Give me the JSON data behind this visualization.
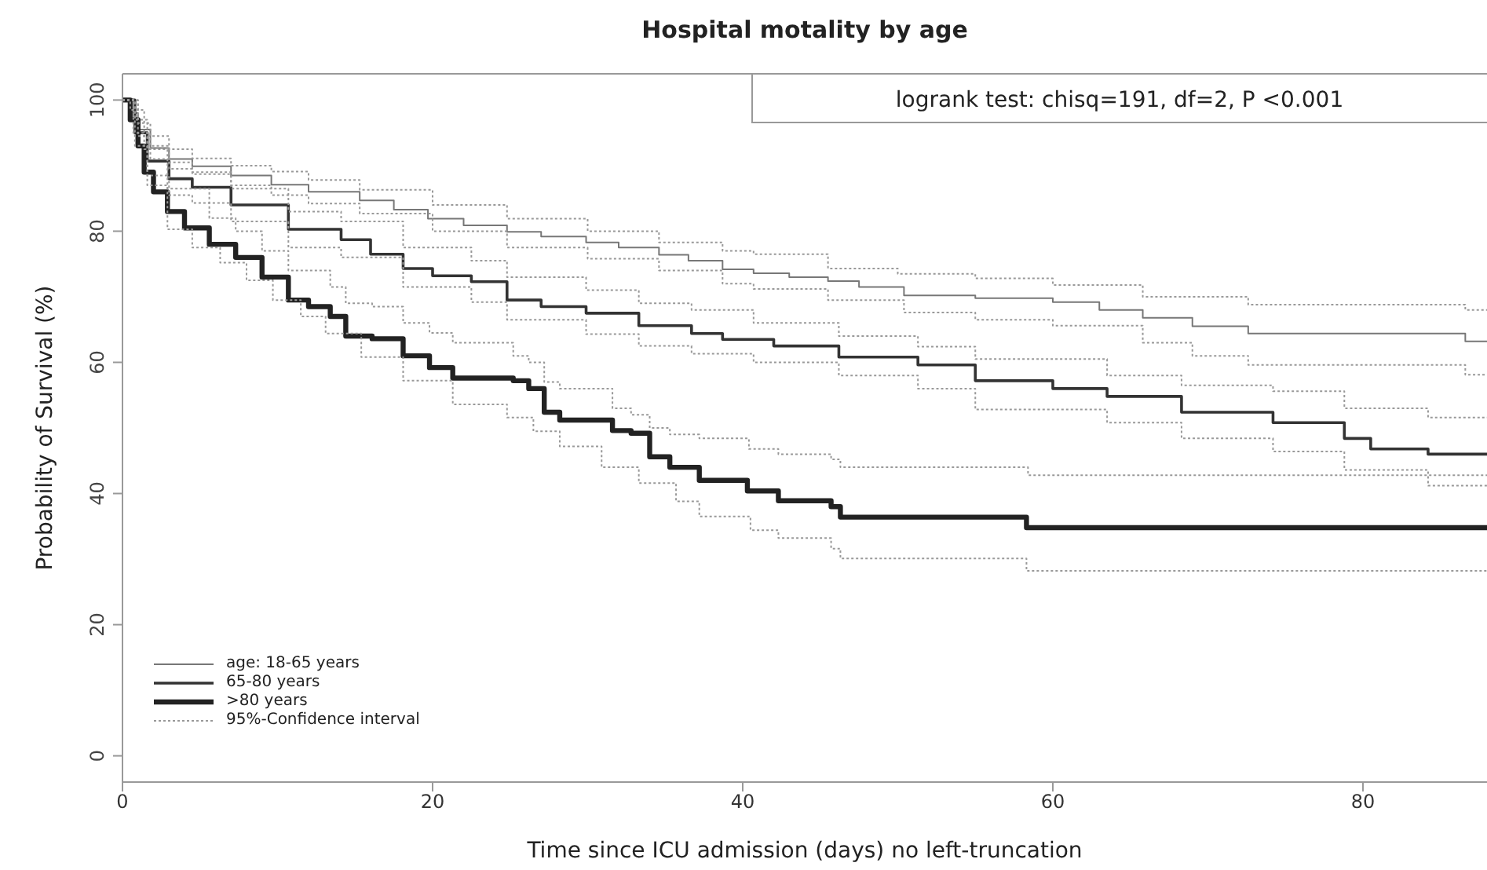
{
  "chart_data": {
    "type": "step",
    "title": "Hospital motality by age",
    "xlabel": "Time since ICU admission (days) no left-truncation",
    "ylabel": "Probability of Survival (%)",
    "annotations": [
      "logrank test: chisq=191, df=2, P <0.001"
    ],
    "xlim": [
      0,
      88
    ],
    "xticks": [
      0,
      20,
      40,
      60,
      80
    ],
    "ylim": [
      -4,
      104
    ],
    "yticks": [
      0,
      20,
      40,
      60,
      80,
      100
    ],
    "legend": "bottom left",
    "marker": "none",
    "series": [
      {
        "name": "age: 18-65 years",
        "color": "#777777",
        "line_style": "solid",
        "x": [
          0,
          0.5,
          1,
          1.8,
          3,
          4.5,
          7,
          9.6,
          12,
          15.3,
          17.5,
          19.7,
          22,
          24.8,
          27,
          29.9,
          32,
          34.6,
          36.5,
          38.7,
          40.7,
          43,
          45.5,
          47.5,
          50.4,
          55,
          60,
          63,
          65.8,
          69,
          72.6,
          86.6,
          88
        ],
        "values": [
          100,
          98,
          95.5,
          92.7,
          91,
          89.9,
          88.5,
          87.1,
          86,
          84.7,
          83.3,
          81.9,
          80.9,
          79.9,
          79.2,
          78.3,
          77.5,
          76.4,
          75.5,
          74.2,
          73.6,
          73,
          72.4,
          71.5,
          70.2,
          69.8,
          69.2,
          68,
          66.8,
          65.5,
          64.4,
          63.2,
          63.2
        ]
      },
      {
        "name": "65-80 years",
        "color": "#333333",
        "line_style": "solid",
        "x": [
          0,
          0.8,
          1.6,
          3,
          4.5,
          7,
          10.7,
          14.1,
          16,
          18.1,
          20,
          22.5,
          24.8,
          27,
          29.9,
          33.3,
          36.7,
          38.7,
          42,
          46.2,
          51.3,
          55,
          60,
          63.5,
          68.3,
          74.2,
          78.8,
          80.5,
          84.2,
          88
        ],
        "values": [
          100,
          95,
          90.7,
          88,
          86.7,
          84,
          80.3,
          78.7,
          76.5,
          74.3,
          73.2,
          72.3,
          69.5,
          68.5,
          67.5,
          65.6,
          64.4,
          63.5,
          62.5,
          60.8,
          59.6,
          57.2,
          56,
          54.8,
          52.4,
          50.8,
          48.4,
          46.8,
          46,
          46
        ]
      },
      {
        "name": ">80 years",
        "color": "#222222",
        "line_style": "solid",
        "x": [
          0,
          0.5,
          1,
          1.4,
          2,
          2.9,
          4,
          5.6,
          7.3,
          9,
          10.7,
          12,
          13.4,
          14.4,
          16.1,
          18.1,
          19.8,
          21.3,
          25.2,
          26.2,
          27.2,
          28.2,
          31.6,
          32.8,
          34,
          35.3,
          37.2,
          40.3,
          42.3,
          45.7,
          46.3,
          58.3,
          88
        ],
        "values": [
          100,
          97,
          93,
          89,
          86,
          83,
          80.5,
          78,
          76,
          73,
          69.5,
          68.5,
          67,
          64,
          63.6,
          61,
          59.2,
          57.6,
          57.2,
          56,
          52.4,
          51.2,
          49.6,
          49.2,
          45.6,
          44,
          42,
          40.4,
          38.9,
          38,
          36.4,
          34.8,
          34.8
        ]
      },
      {
        "name": "95%-Confidence interval",
        "color": "#999999",
        "line_style": "dotted",
        "x": [
          0,
          1,
          1.8,
          3,
          4.5,
          7,
          9.6,
          12,
          15.3,
          20,
          24.8,
          30,
          34.6,
          38.7,
          40.7,
          45.5,
          50,
          55,
          60,
          65.8,
          72.6,
          86.6,
          88
        ],
        "values": [
          100,
          96.5,
          94.5,
          92.5,
          91.1,
          90,
          89.1,
          87.8,
          86.3,
          84,
          81.9,
          80,
          78.3,
          77,
          76.5,
          74.3,
          73.5,
          72.8,
          71.8,
          70,
          68.8,
          68,
          68
        ]
      },
      {
        "color": "#999999",
        "line_style": "dotted",
        "x": [
          0,
          1,
          1.8,
          3,
          4.5,
          7,
          9.6,
          12,
          15.3,
          20,
          24.8,
          30,
          34.6,
          38.7,
          40.7,
          45.5,
          50.4,
          55,
          60,
          65.8,
          69,
          72.6,
          86.6,
          88
        ],
        "values": [
          100,
          94.5,
          91,
          89.5,
          88.7,
          87,
          85.5,
          84.2,
          82.7,
          80,
          77.5,
          75.8,
          74,
          72,
          71.2,
          69.5,
          67.6,
          66.5,
          65.6,
          63,
          61,
          59.6,
          58.1,
          58.1
        ]
      },
      {
        "color": "#999999",
        "line_style": "dotted",
        "x": [
          0,
          0.8,
          1.6,
          3,
          4.5,
          7,
          10.7,
          14.1,
          18.1,
          22.5,
          24.8,
          29.9,
          33.3,
          36.7,
          40.7,
          46.2,
          51.3,
          55,
          63.5,
          68.3,
          74.2,
          78.8,
          84.2,
          88
        ],
        "values": [
          100,
          97,
          93,
          90.5,
          89,
          86.5,
          83,
          81.5,
          77.5,
          75.5,
          73,
          71,
          69,
          68,
          66,
          64,
          62.4,
          60.5,
          58,
          56.5,
          55.6,
          53,
          51.6,
          51.6
        ]
      },
      {
        "color": "#999999",
        "line_style": "dotted",
        "x": [
          0,
          0.8,
          1.6,
          3,
          4.5,
          7,
          10.7,
          14.1,
          18.1,
          22.5,
          24.8,
          29.9,
          33.3,
          36.7,
          40.7,
          46.2,
          51.3,
          55,
          63.5,
          68.3,
          74.2,
          78.8,
          84.2,
          88
        ],
        "values": [
          100,
          93,
          88.5,
          85.5,
          84.3,
          81.5,
          77.5,
          76,
          71.5,
          69.2,
          66.5,
          64.3,
          62.5,
          61.3,
          60,
          58,
          56,
          52.8,
          50.8,
          48.4,
          46.4,
          43.6,
          41.2,
          41.2
        ]
      },
      {
        "color": "#999999",
        "line_style": "dotted",
        "x": [
          0,
          0.5,
          1.4,
          2.9,
          5.6,
          7.3,
          9,
          10.7,
          13.4,
          14.4,
          16.1,
          18.1,
          19.8,
          21.3,
          25.2,
          26.2,
          27.2,
          28.2,
          31.6,
          32.8,
          34,
          35.3,
          37.2,
          40.4,
          42.3,
          45.7,
          46.3,
          58.4,
          88
        ],
        "values": [
          100,
          98.5,
          92.5,
          86.5,
          82,
          80,
          77,
          74,
          71.5,
          69,
          68.5,
          66,
          64.5,
          63,
          61,
          60,
          57,
          56,
          53,
          52,
          50,
          49,
          48.4,
          46.8,
          46,
          45.2,
          44,
          42.8,
          42.8
        ]
      },
      {
        "color": "#999999",
        "line_style": "dotted",
        "x": [
          0,
          0.7,
          1.6,
          2.9,
          4.5,
          6.3,
          8,
          9.7,
          11.5,
          13.1,
          15.4,
          18.1,
          21.3,
          24.8,
          26.5,
          28.2,
          30.9,
          33.3,
          35.7,
          37.2,
          40.5,
          42.3,
          45.7,
          46.3,
          58.3,
          88
        ],
        "values": [
          100,
          95,
          87,
          80.3,
          77.5,
          75.2,
          72.5,
          69.5,
          67,
          64.4,
          60.8,
          57.2,
          53.6,
          51.6,
          49.5,
          47.2,
          44,
          41.6,
          38.8,
          36.5,
          34.4,
          33.2,
          31.6,
          30.1,
          28.2,
          28.2
        ]
      }
    ]
  }
}
